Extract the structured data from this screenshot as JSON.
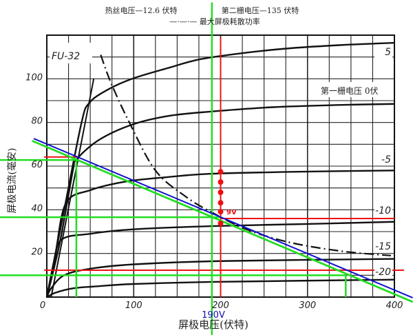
{
  "chart_data": {
    "type": "line",
    "title_line1_left": "热丝电压—12.6 伏特",
    "title_line1_right": "第二栅电压—135 伏特",
    "legend_dashdot": "—·—·— 最大屏极耗散功率",
    "tube_label": "FU-32",
    "xlabel": "屏极电压(伏特)",
    "ylabel": "屏极电流(毫安)",
    "xlim": [
      0,
      400
    ],
    "ylim": [
      0,
      120
    ],
    "x_grid_step": 25,
    "y_grid_step": 10,
    "grid": true,
    "x_ticks": [
      "0",
      "100",
      "200",
      "300",
      "400"
    ],
    "x_tick_values": [
      0,
      100,
      200,
      300,
      400
    ],
    "y_ticks": [
      "20",
      "40",
      "60",
      "80",
      "100"
    ],
    "y_tick_values": [
      20,
      40,
      60,
      80,
      100
    ],
    "grid1_caption": "第一栅电压 0伏",
    "series": [
      {
        "name": "5",
        "points": [
          [
            0,
            0
          ],
          [
            20,
            40
          ],
          [
            40,
            80
          ],
          [
            49,
            89
          ],
          [
            70,
            95
          ],
          [
            98,
            100
          ],
          [
            140,
            105
          ],
          [
            177,
            109
          ],
          [
            230,
            112
          ],
          [
            280,
            114
          ],
          [
            340,
            115.5
          ],
          [
            400,
            116.5
          ]
        ]
      },
      {
        "name": "0",
        "points": [
          [
            0,
            0
          ],
          [
            15,
            25
          ],
          [
            30,
            58
          ],
          [
            34,
            63
          ],
          [
            60,
            72
          ],
          [
            98,
            79
          ],
          [
            140,
            83
          ],
          [
            189,
            85
          ],
          [
            260,
            87
          ],
          [
            335,
            88
          ],
          [
            400,
            88.5
          ]
        ]
      },
      {
        "name": "-5",
        "points": [
          [
            0,
            0
          ],
          [
            10,
            20
          ],
          [
            22,
            43
          ],
          [
            50,
            49
          ],
          [
            92,
            53
          ],
          [
            140,
            55
          ],
          [
            189,
            56.5
          ],
          [
            300,
            57.5
          ],
          [
            400,
            58
          ]
        ]
      },
      {
        "name": "-10",
        "points": [
          [
            0,
            0
          ],
          [
            8,
            13
          ],
          [
            16,
            26
          ],
          [
            50,
            29
          ],
          [
            98,
            31
          ],
          [
            189,
            32.5
          ],
          [
            300,
            33.5
          ],
          [
            400,
            34.5
          ]
        ]
      },
      {
        "name": "-15",
        "points": [
          [
            0,
            0
          ],
          [
            5,
            4
          ],
          [
            20,
            10
          ],
          [
            50,
            13
          ],
          [
            100,
            15
          ],
          [
            200,
            16.5
          ],
          [
            400,
            17.5
          ]
        ]
      },
      {
        "name": "-20",
        "points": [
          [
            0,
            0
          ],
          [
            10,
            2
          ],
          [
            30,
            4
          ],
          [
            60,
            5
          ],
          [
            100,
            6
          ],
          [
            200,
            7
          ],
          [
            400,
            8
          ]
        ]
      }
    ],
    "knee_line": [
      [
        5,
        0
      ],
      [
        54,
        100
      ]
    ],
    "max_dissipation": [
      [
        62,
        111
      ],
      [
        74,
        98
      ],
      [
        95,
        80
      ],
      [
        125,
        58
      ],
      [
        160,
        46
      ],
      [
        189,
        39
      ],
      [
        230,
        31
      ],
      [
        280,
        25
      ],
      [
        340,
        21
      ],
      [
        396,
        19
      ]
    ],
    "annotations": {
      "blue_load_line": {
        "color": "#1010d0",
        "from": [
          -15,
          72.6
        ],
        "to": [
          421,
          -0.3
        ]
      },
      "green_load_line": {
        "color": "#22dd22",
        "from": [
          -17,
          71.6
        ],
        "to": [
          421,
          -2.2
        ]
      },
      "green_hlines": [
        {
          "y": 62.8,
          "x": [
            -54,
            34
          ]
        },
        {
          "y": 36.6,
          "x": [
            -54,
            200
          ]
        },
        {
          "y": 10,
          "x": [
            -54,
            344
          ]
        }
      ],
      "green_vlines": [
        {
          "x": 34,
          "y": [
            0,
            62.8
          ]
        },
        {
          "x": 190,
          "y": [
            -18,
            135
          ]
        },
        {
          "x": 344,
          "y": [
            0,
            10
          ]
        }
      ],
      "red_hlines": [
        {
          "y": 64.2,
          "x": [
            -3,
            36
          ]
        },
        {
          "y": 36,
          "x": [
            200,
            400
          ]
        },
        {
          "y": 12.3,
          "x": [
            -3,
            411
          ]
        }
      ],
      "red_vline": {
        "x": 200,
        "y": [
          0,
          119
        ]
      },
      "red_dots": [
        57.4,
        52.7,
        48.0,
        43.2,
        39.1,
        33.8
      ],
      "red_color": "#ee1111",
      "label_9v": "9V",
      "label_190v": "190V",
      "label_190v_color": "#1010b0"
    }
  }
}
